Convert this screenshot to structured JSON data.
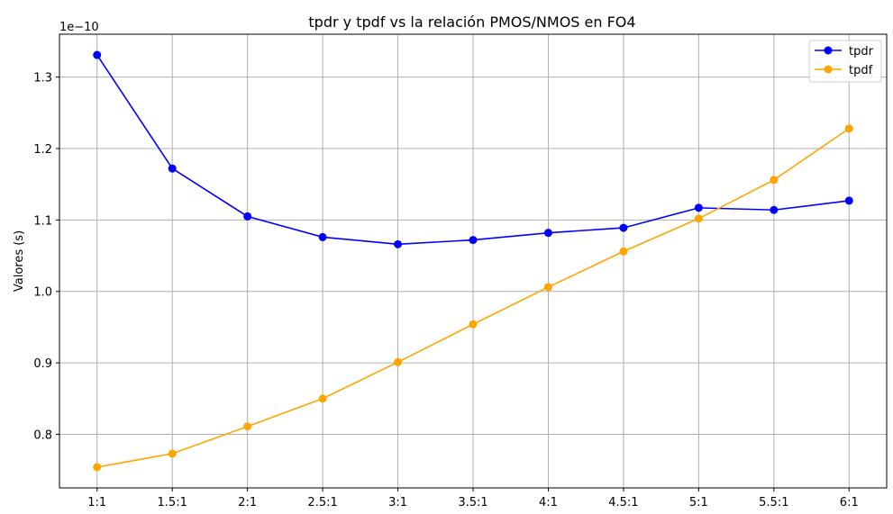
{
  "chart_data": {
    "type": "line",
    "title": "tpdr y tpdf vs la relación PMOS/NMOS en FO4",
    "xlabel": "",
    "ylabel": "Valores (s)",
    "y_offset_label": "1e−10",
    "categories": [
      "1:1",
      "1.5:1",
      "2:1",
      "2.5:1",
      "3:1",
      "3.5:1",
      "4:1",
      "4.5:1",
      "5:1",
      "5.5:1",
      "6:1"
    ],
    "ylim": [
      0.725,
      1.36
    ],
    "yticks": [
      0.8,
      0.9,
      1.0,
      1.1,
      1.2,
      1.3
    ],
    "ytick_labels": [
      "0.8",
      "0.9",
      "1.0",
      "1.1",
      "1.2",
      "1.3"
    ],
    "grid": true,
    "legend_position": "top-right",
    "series": [
      {
        "name": "tpdr",
        "color": "#0000ff",
        "marker": "circle",
        "values": [
          1.331,
          1.172,
          1.105,
          1.076,
          1.066,
          1.072,
          1.082,
          1.089,
          1.117,
          1.114,
          1.127
        ]
      },
      {
        "name": "tpdf",
        "color": "#ffa500",
        "marker": "circle",
        "values": [
          0.754,
          0.773,
          0.811,
          0.85,
          0.901,
          0.954,
          1.006,
          1.056,
          1.102,
          1.156,
          1.228
        ]
      }
    ]
  }
}
